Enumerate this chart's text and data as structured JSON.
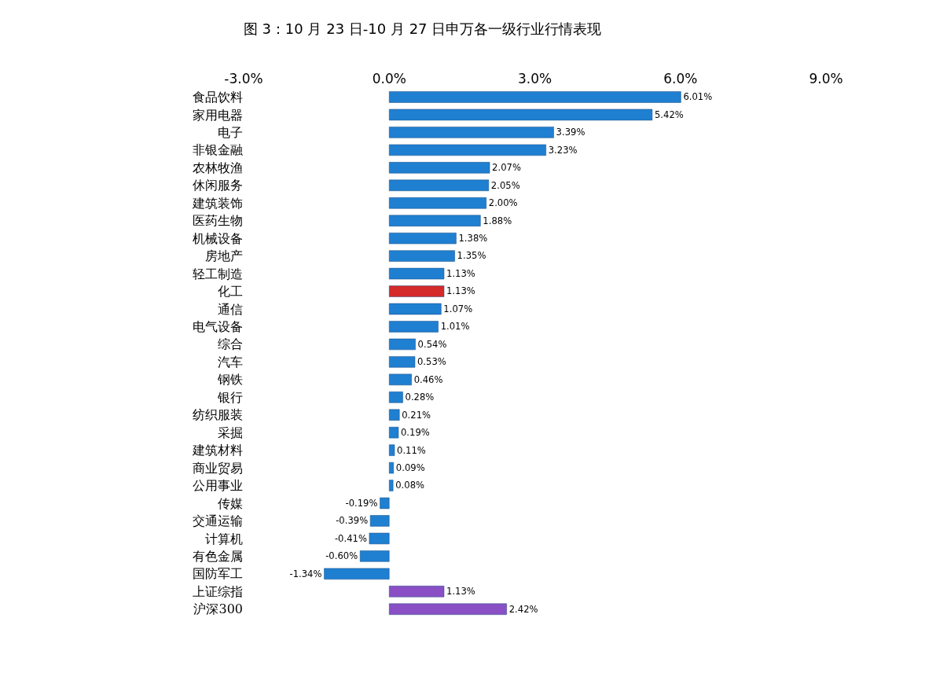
{
  "chart_data": {
    "type": "bar",
    "orientation": "horizontal",
    "title": "图 3：10 月 23 日-10 月 27 日申万各一级行业行情表现",
    "categories": [
      "食品饮料",
      "家用电器",
      "电子",
      "非银金融",
      "农林牧渔",
      "休闲服务",
      "建筑装饰",
      "医药生物",
      "机械设备",
      "房地产",
      "轻工制造",
      "化工",
      "通信",
      "电气设备",
      "综合",
      "汽车",
      "钢铁",
      "银行",
      "纺织服装",
      "采掘",
      "建筑材料",
      "商业贸易",
      "公用事业",
      "传媒",
      "交通运输",
      "计算机",
      "有色金属",
      "国防军工",
      "上证综指",
      "沪深300"
    ],
    "values": [
      6.01,
      5.42,
      3.39,
      3.23,
      2.07,
      2.05,
      2.0,
      1.88,
      1.38,
      1.35,
      1.13,
      1.13,
      1.07,
      1.01,
      0.54,
      0.53,
      0.46,
      0.28,
      0.21,
      0.19,
      0.11,
      0.09,
      0.08,
      -0.19,
      -0.39,
      -0.41,
      -0.6,
      -1.34,
      1.13,
      2.42
    ],
    "value_labels": [
      "6.01%",
      "5.42%",
      "3.39%",
      "3.23%",
      "2.07%",
      "2.05%",
      "2.00%",
      "1.88%",
      "1.38%",
      "1.35%",
      "1.13%",
      "1.13%",
      "1.07%",
      "1.01%",
      "0.54%",
      "0.53%",
      "0.46%",
      "0.28%",
      "0.21%",
      "0.19%",
      "0.11%",
      "0.09%",
      "0.08%",
      "-0.19%",
      "-0.39%",
      "-0.41%",
      "-0.60%",
      "-1.34%",
      "1.13%",
      "2.42%"
    ],
    "colors": [
      "#1f7fd1",
      "#1f7fd1",
      "#1f7fd1",
      "#1f7fd1",
      "#1f7fd1",
      "#1f7fd1",
      "#1f7fd1",
      "#1f7fd1",
      "#1f7fd1",
      "#1f7fd1",
      "#1f7fd1",
      "#d42a2a",
      "#1f7fd1",
      "#1f7fd1",
      "#1f7fd1",
      "#1f7fd1",
      "#1f7fd1",
      "#1f7fd1",
      "#1f7fd1",
      "#1f7fd1",
      "#1f7fd1",
      "#1f7fd1",
      "#1f7fd1",
      "#1f7fd1",
      "#1f7fd1",
      "#1f7fd1",
      "#1f7fd1",
      "#1f7fd1",
      "#8a4fc4",
      "#8a4fc4"
    ],
    "xlim": [
      -3,
      9
    ],
    "xticks": [
      {
        "value": -3,
        "label": "-3.0%"
      },
      {
        "value": 0,
        "label": "0.0%"
      },
      {
        "value": 3,
        "label": "3.0%"
      },
      {
        "value": 6,
        "label": "6.0%"
      },
      {
        "value": 9,
        "label": "9.0%"
      }
    ]
  }
}
